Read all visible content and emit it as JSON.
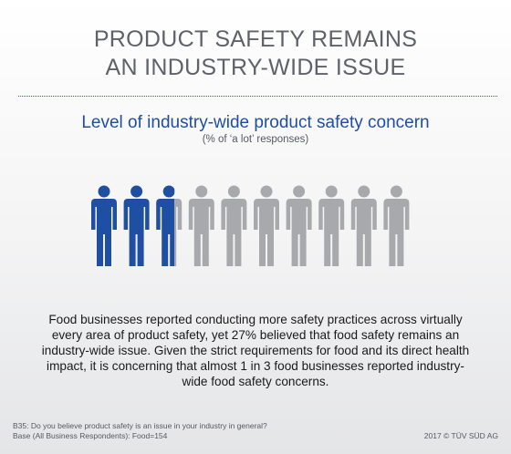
{
  "header": {
    "title_line1": "PRODUCT SAFETY REMAINS",
    "title_line2": "AN INDUSTRY-WIDE ISSUE"
  },
  "chart_data": {
    "type": "pictogram",
    "title": "Level of industry-wide product safety concern",
    "subtitle": "(% of ‘a lot’ responses)",
    "total_icons": 10,
    "value_percent": 27,
    "colors": {
      "highlight": "#1e4fa3",
      "base": "#a7a9ac"
    }
  },
  "body": {
    "paragraph": "Food businesses reported conducting more safety practices across virtually every area of product safety, yet 27% believed that food safety remains an industry-wide issue. Given the strict requirements for food and its direct health impact, it is concerning that almost 1 in 3 food businesses reported industry-wide food safety concerns."
  },
  "footer": {
    "question": "B35: Do you believe product safety is an issue in your industry in general?",
    "base": "Base (All Business Respondents): Food=154",
    "copyright": "2017 © TÜV SÜD AG"
  }
}
